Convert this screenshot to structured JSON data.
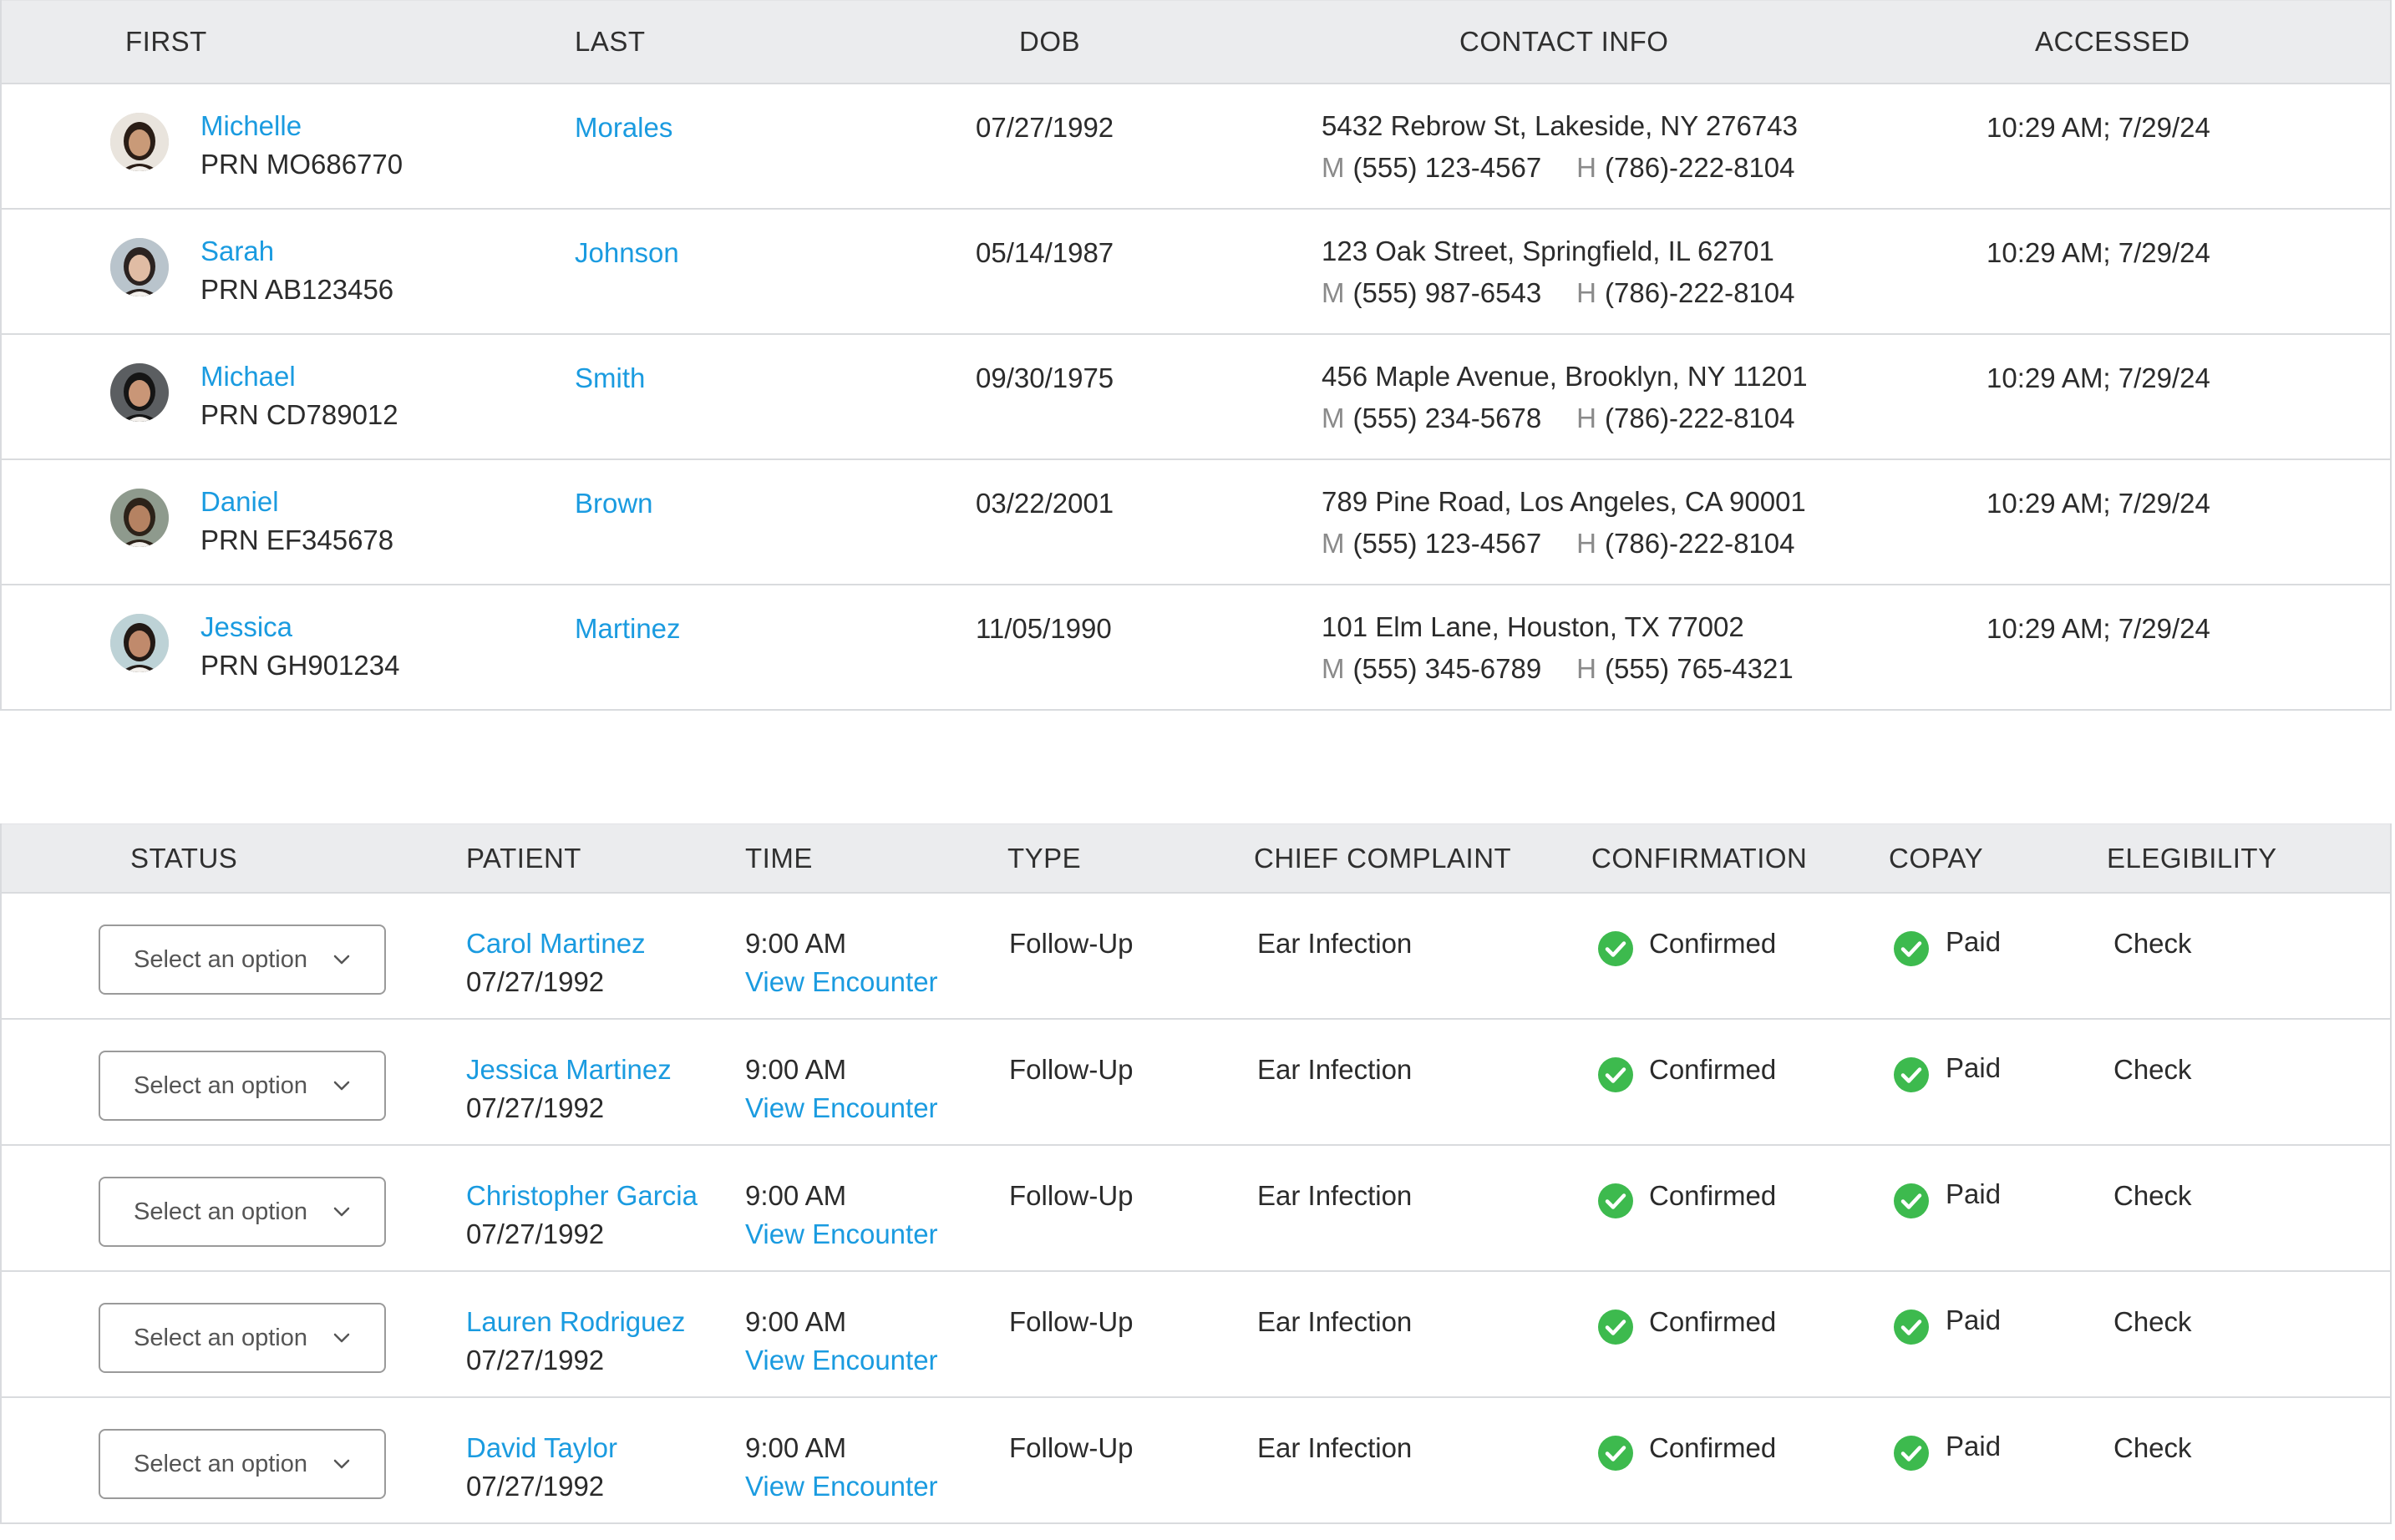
{
  "patients_table": {
    "columns": [
      "FIRST",
      "LAST",
      "DOB",
      "CONTACT INFO",
      "ACCESSED"
    ],
    "rows": [
      {
        "first": "Michelle",
        "prn": "PRN MO686770",
        "last": "Morales",
        "dob": "07/27/1992",
        "address": "5432 Rebrow St, Lakeside, NY 276743",
        "m_label": "M",
        "mobile": "(555) 123-4567",
        "h_label": "H",
        "home": "(786)-222-8104",
        "accessed": "10:29 AM; 7/29/24",
        "avatar_skin": "#c99a78",
        "avatar_hair": "#2a1d16",
        "avatar_bg": "#e9e4dd"
      },
      {
        "first": "Sarah",
        "prn": "PRN AB123456",
        "last": "Johnson",
        "dob": "05/14/1987",
        "address": "123 Oak Street, Springfield, IL 62701",
        "m_label": "M",
        "mobile": "(555) 987-6543",
        "h_label": "H",
        "home": "(786)-222-8104",
        "accessed": "10:29 AM; 7/29/24",
        "avatar_skin": "#e0bca4",
        "avatar_hair": "#2b2321",
        "avatar_bg": "#b9c4cc"
      },
      {
        "first": "Michael",
        "prn": "PRN CD789012",
        "last": "Smith",
        "dob": "09/30/1975",
        "address": "456 Maple Avenue, Brooklyn, NY 11201",
        "m_label": "M",
        "mobile": "(555) 234-5678",
        "h_label": "H",
        "home": "(786)-222-8104",
        "accessed": "10:29 AM; 7/29/24",
        "avatar_skin": "#c99677",
        "avatar_hair": "#151515",
        "avatar_bg": "#5b5e61"
      },
      {
        "first": "Daniel",
        "prn": "PRN EF345678",
        "last": "Brown",
        "dob": "03/22/2001",
        "address": "789 Pine Road, Los Angeles, CA 90001",
        "m_label": "M",
        "mobile": "(555) 123-4567",
        "h_label": "H",
        "home": "(786)-222-8104",
        "accessed": "10:29 AM; 7/29/24",
        "avatar_skin": "#b58262",
        "avatar_hair": "#2c2219",
        "avatar_bg": "#8e9a8d"
      },
      {
        "first": "Jessica",
        "prn": "PRN GH901234",
        "last": "Martinez",
        "dob": "11/05/1990",
        "address": "101 Elm Lane, Houston, TX 77002",
        "m_label": "M",
        "mobile": "(555) 345-6789",
        "h_label": "H",
        "home": "(555) 765-4321",
        "accessed": "10:29 AM; 7/29/24",
        "avatar_skin": "#c08a6c",
        "avatar_hair": "#221915",
        "avatar_bg": "#bdd2d6"
      }
    ]
  },
  "encounters_table": {
    "columns": [
      "STATUS",
      "PATIENT",
      "TIME",
      "TYPE",
      "CHIEF COMPLAINT",
      "CONFIRMATION",
      "COPAY",
      "ELEGIBILITY"
    ],
    "rows": [
      {
        "status_placeholder": "Select an option",
        "patient": "Carol Martinez",
        "dob": "07/27/1992",
        "time": "9:00 AM",
        "encounter_link": "View Encounter",
        "type": "Follow-Up",
        "complaint": "Ear Infection",
        "confirmation": "Confirmed",
        "copay": "Paid",
        "eligibility": "Check"
      },
      {
        "status_placeholder": "Select an option",
        "patient": "Jessica Martinez",
        "dob": "07/27/1992",
        "time": "9:00 AM",
        "encounter_link": "View Encounter",
        "type": "Follow-Up",
        "complaint": "Ear Infection",
        "confirmation": "Confirmed",
        "copay": "Paid",
        "eligibility": "Check"
      },
      {
        "status_placeholder": "Select an option",
        "patient": "Christopher Garcia",
        "dob": "07/27/1992",
        "time": "9:00 AM",
        "encounter_link": "View Encounter",
        "type": "Follow-Up",
        "complaint": "Ear Infection",
        "confirmation": "Confirmed",
        "copay": "Paid",
        "eligibility": "Check"
      },
      {
        "status_placeholder": "Select an option",
        "patient": "Lauren Rodriguez",
        "dob": "07/27/1992",
        "time": "9:00 AM",
        "encounter_link": "View Encounter",
        "type": "Follow-Up",
        "complaint": "Ear Infection",
        "confirmation": "Confirmed",
        "copay": "Paid",
        "eligibility": "Check"
      },
      {
        "status_placeholder": "Select an option",
        "patient": "David Taylor",
        "dob": "07/27/1992",
        "time": "9:00 AM",
        "encounter_link": "View Encounter",
        "type": "Follow-Up",
        "complaint": "Ear Infection",
        "confirmation": "Confirmed",
        "copay": "Paid",
        "eligibility": "Check"
      }
    ]
  },
  "colors": {
    "link": "#1a9be0",
    "success": "#3dba4e",
    "header_bg": "#ebecee",
    "border": "#d9dbde"
  },
  "icons": {
    "status_dropdown": "chevron-down-icon",
    "confirmed": "check-circle-icon",
    "paid": "check-circle-icon"
  }
}
